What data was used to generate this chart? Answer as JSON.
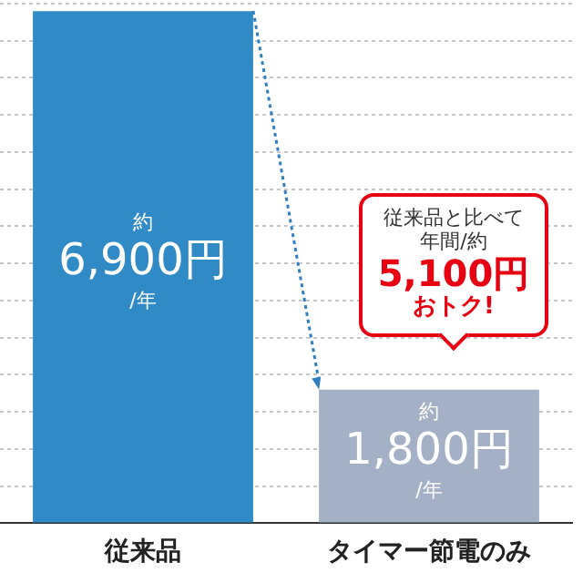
{
  "chart_data": {
    "type": "bar",
    "categories": [
      "従来品",
      "タイマー節電のみ"
    ],
    "values": [
      6900,
      1800
    ],
    "colors": [
      "#2f8ac6",
      "#a3b0c6"
    ],
    "value_labels": [
      "約\n6,900円\n/年",
      "約\n1,800円\n/年"
    ],
    "annotations": [
      "従来品と比べて",
      "年間/約",
      "5,100円",
      "おトク!"
    ],
    "ylim": [
      0,
      7000
    ],
    "yticks": [
      {
        "value": 0,
        "label": null
      },
      {
        "value": 500,
        "label": null
      },
      {
        "value": 1000,
        "label": null
      },
      {
        "value": 1500,
        "label": null
      },
      {
        "value": 2000,
        "label": null
      },
      {
        "value": 2500,
        "label": null
      },
      {
        "value": 3000,
        "label": null
      },
      {
        "value": 3500,
        "label": null
      },
      {
        "value": 4000,
        "label": null
      },
      {
        "value": 4500,
        "label": null
      },
      {
        "value": 5000,
        "label": null
      },
      {
        "value": 5500,
        "label": null
      },
      {
        "value": 6000,
        "label": null
      },
      {
        "value": 6500,
        "label": null
      },
      {
        "value": 7000,
        "label": null
      }
    ],
    "tick_labels": "x",
    "grid": "y"
  }
}
